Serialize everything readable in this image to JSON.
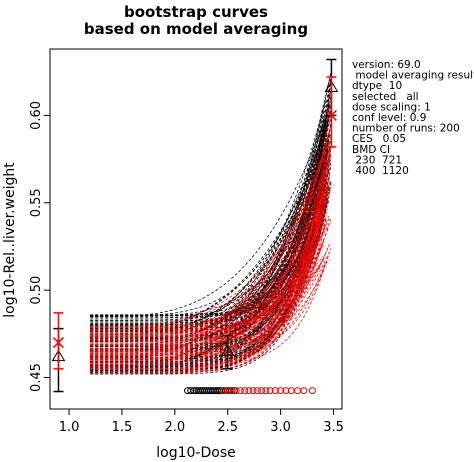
{
  "chart_data": {
    "type": "line",
    "title_lines": [
      "bootstrap curves",
      "based on model averaging"
    ],
    "xlabel": "log10-Dose",
    "ylabel": "log10-Rel..liver.weight",
    "xlim": [
      0.82,
      3.58
    ],
    "ylim": [
      0.432,
      0.638
    ],
    "x_ticks": [
      1.0,
      1.5,
      2.0,
      2.5,
      3.0,
      3.5
    ],
    "x_tick_labels": [
      "1.0",
      "1.5",
      "2.0",
      "2.5",
      "3.0",
      "3.5"
    ],
    "y_ticks": [
      0.45,
      0.5,
      0.55,
      0.6
    ],
    "y_tick_labels": [
      "0.45",
      "0.50",
      "0.55",
      "0.60"
    ],
    "grid": false,
    "colors": {
      "black_curves": "#000000",
      "red_curves": "#ff0000"
    },
    "bootstrap_curves": {
      "x_start": 1.2,
      "x_end": 3.48,
      "black_count": 120,
      "red_count": 80,
      "black": {
        "base_low": 0.452,
        "base_high": 0.486,
        "top_low": 0.556,
        "top_high": 0.628
      },
      "red": {
        "base_low": 0.452,
        "base_high": 0.48,
        "top_low": 0.518,
        "top_high": 0.604
      }
    },
    "observations": [
      {
        "x": 0.9,
        "mean": 0.462,
        "lower": 0.442,
        "upper": 0.478,
        "marker": "triangle",
        "color": "#000000"
      },
      {
        "x": 0.9,
        "mean": 0.47,
        "lower": 0.455,
        "upper": 0.487,
        "marker": "cross",
        "color": "#ff0000"
      },
      {
        "x": 2.5,
        "mean": 0.465,
        "lower": 0.455,
        "upper": 0.474,
        "marker": "triangle",
        "color": "#000000"
      },
      {
        "x": 3.48,
        "mean": 0.616,
        "lower": 0.6,
        "upper": 0.632,
        "marker": "triangle",
        "color": "#000000"
      },
      {
        "x": 3.48,
        "mean": 0.6,
        "lower": 0.582,
        "upper": 0.622,
        "marker": "cross",
        "color": "#ff0000"
      }
    ],
    "bmd_points": {
      "y": 0.4425,
      "black": [
        2.12,
        2.15,
        2.18,
        2.2,
        2.22,
        2.24,
        2.26,
        2.28,
        2.3,
        2.32,
        2.34,
        2.36,
        2.38,
        2.4,
        2.42,
        2.44,
        2.46,
        2.48,
        2.5,
        2.52,
        2.54,
        2.56
      ],
      "red": [
        2.46,
        2.5,
        2.54,
        2.58,
        2.62,
        2.66,
        2.7,
        2.74,
        2.78,
        2.82,
        2.86,
        2.9,
        2.95,
        3.0,
        3.05,
        3.1,
        3.16,
        3.22,
        3.3
      ]
    },
    "info_text": [
      "version: 69.0",
      " model averaging results",
      "dtype  10",
      "selected   all",
      "dose scaling: 1",
      "conf level: 0.9",
      "number of runs: 200",
      "CES   0.05",
      "BMD CI",
      " 230  721",
      " 400  1120"
    ]
  }
}
